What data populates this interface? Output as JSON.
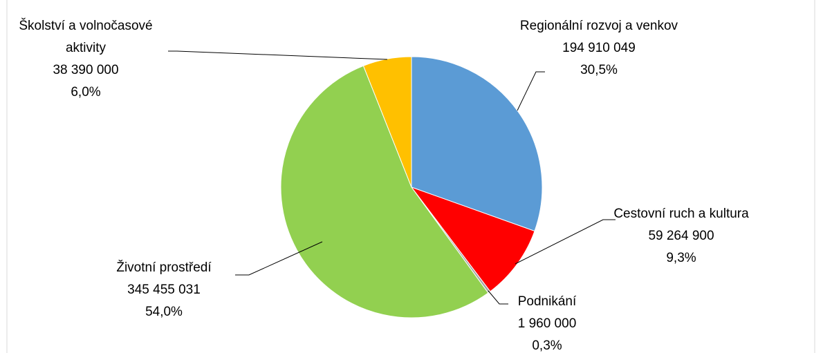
{
  "chart_data": {
    "type": "pie",
    "categories": [
      "Regionální rozvoj a venkov",
      "Cestovní ruch a kultura",
      "Podnikání",
      "Životní prostředí",
      "Školství a volnočasové aktivity"
    ],
    "values": [
      194910049,
      59264900,
      1960000,
      345455031,
      38390000
    ],
    "value_labels": [
      "194 910 049",
      "59 264 900",
      "1 960 000",
      "345 455 031",
      "38 390 000"
    ],
    "percents": [
      30.5,
      9.3,
      0.3,
      54.0,
      6.0
    ],
    "percent_labels": [
      "30,5%",
      "9,3%",
      "0,3%",
      "54,0%",
      "6,0%"
    ],
    "colors": [
      "#5b9bd5",
      "#ff0000",
      "#a5a5a5",
      "#92d050",
      "#ffc000"
    ]
  }
}
